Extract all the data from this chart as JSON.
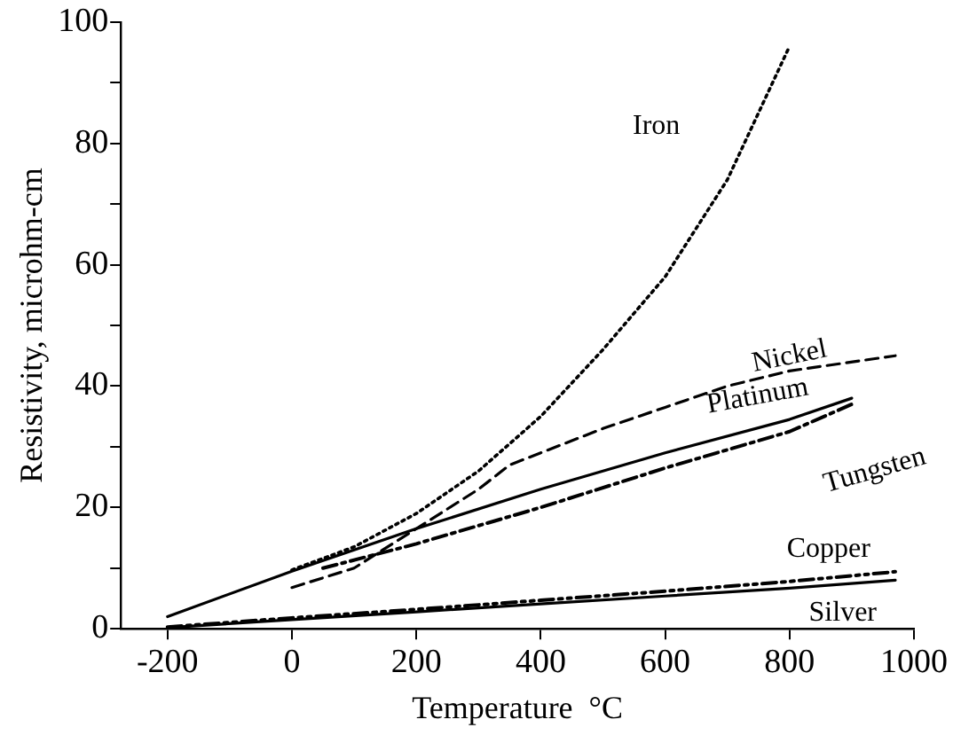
{
  "chart_data": {
    "type": "line",
    "xlabel": "Temperature  °C",
    "ylabel": "Resistivity, microhm-cm",
    "xlim": [
      -275,
      1000
    ],
    "xticks": [
      -200,
      0,
      200,
      400,
      600,
      800,
      1000
    ],
    "ylim": [
      0,
      100
    ],
    "yticks": [
      0,
      {
        "value": 10,
        "label": null
      },
      20,
      {
        "value": 30,
        "label": null
      },
      40,
      {
        "value": 50,
        "label": null
      },
      60,
      {
        "value": 70,
        "label": null
      },
      80,
      {
        "value": 90,
        "label": null
      },
      100
    ],
    "grid": false,
    "legend": false,
    "marker": "none",
    "series": [
      {
        "name": "Iron",
        "color": "#000000",
        "line_style": "dotted",
        "x": [
          0,
          100,
          200,
          300,
          400,
          500,
          600,
          700,
          800
        ],
        "values": [
          9.7,
          13.5,
          19,
          26,
          35,
          46,
          58,
          74,
          96
        ]
      },
      {
        "name": "Nickel",
        "color": "#000000",
        "line_style": "dashed",
        "x": [
          0,
          100,
          200,
          300,
          350,
          400,
          500,
          600,
          700,
          800,
          970
        ],
        "values": [
          6.8,
          10,
          16.5,
          23,
          27,
          29,
          33,
          36.5,
          40,
          42.5,
          45
        ]
      },
      {
        "name": "Platinum",
        "color": "#000000",
        "line_style": "solid",
        "x": [
          -200,
          0,
          200,
          400,
          600,
          800,
          900
        ],
        "values": [
          2,
          9.5,
          16.5,
          23,
          29,
          34.5,
          38
        ]
      },
      {
        "name": "Tungsten",
        "color": "#000000",
        "line_style": "dashdot",
        "x": [
          50,
          200,
          400,
          600,
          800,
          900
        ],
        "values": [
          10,
          14,
          20,
          26.5,
          32.5,
          37
        ]
      },
      {
        "name": "Copper",
        "color": "#000000",
        "line_style": "dashdotdot",
        "x": [
          -200,
          0,
          200,
          400,
          600,
          800,
          970
        ],
        "values": [
          0.3,
          1.8,
          3.2,
          4.7,
          6.2,
          7.8,
          9.4
        ]
      },
      {
        "name": "Silver",
        "color": "#000000",
        "line_style": "solid",
        "x": [
          -200,
          0,
          200,
          400,
          600,
          800,
          970
        ],
        "values": [
          0.2,
          1.5,
          2.8,
          4.1,
          5.4,
          6.7,
          8
        ]
      }
    ]
  }
}
